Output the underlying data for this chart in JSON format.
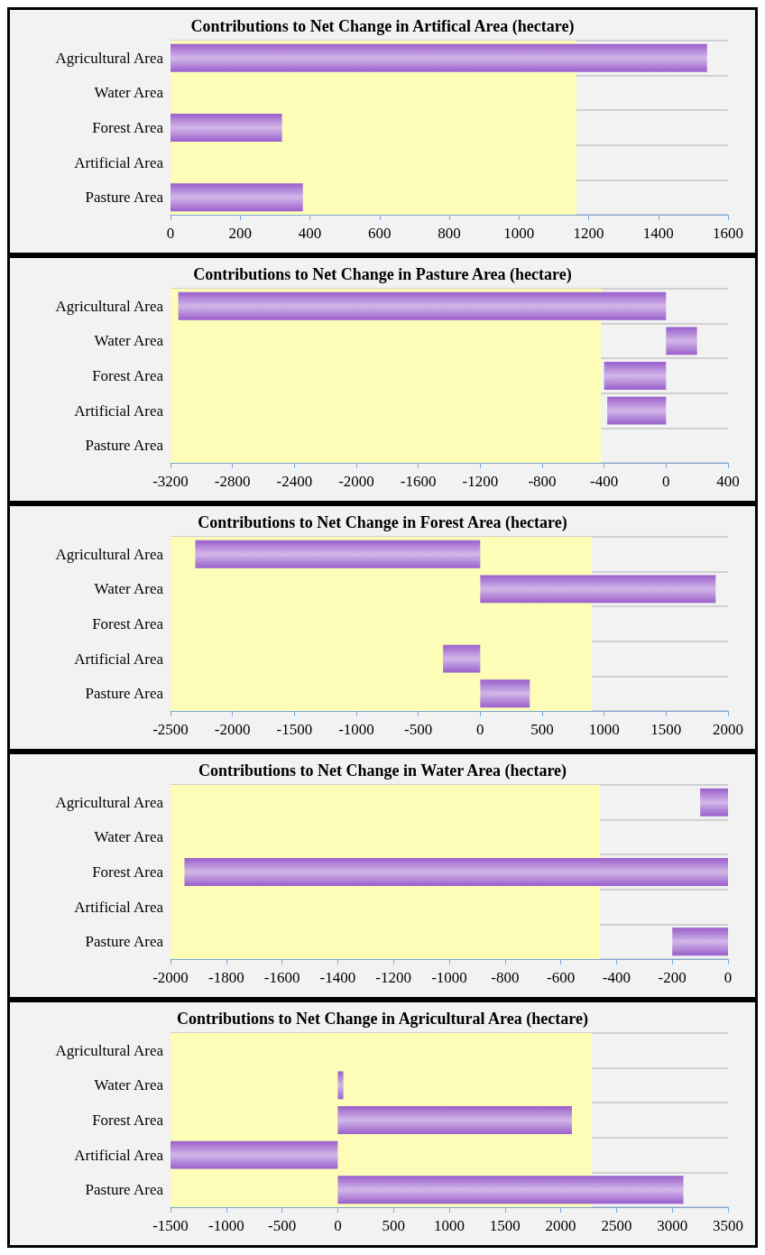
{
  "chart_data": [
    {
      "type": "bar",
      "orientation": "horizontal",
      "title": "Contributions to Net Change in Artifical Area (hectare)",
      "categories": [
        "Agricultural Area",
        "Water Area",
        "Forest Area",
        "Artificial Area",
        "Pasture Area"
      ],
      "values": [
        1540,
        0,
        320,
        0,
        380
      ],
      "color": "#9a5fcc",
      "xlim": [
        0,
        1600
      ],
      "xticks": [
        0,
        200,
        400,
        600,
        800,
        1000,
        1200,
        1400,
        1600
      ],
      "grid": "y",
      "bands": [
        {
          "axis": "x",
          "from": 0,
          "to": 1165,
          "color": "#fdfdb8"
        }
      ]
    },
    {
      "type": "bar",
      "orientation": "horizontal",
      "title": "Contributions to Net Change in Pasture Area (hectare)",
      "categories": [
        "Agricultural Area",
        "Water Area",
        "Forest Area",
        "Artificial Area",
        "Pasture Area"
      ],
      "values": [
        -3150,
        200,
        -400,
        -380,
        0
      ],
      "color": "#9a5fcc",
      "xlim": [
        -3200,
        400
      ],
      "xticks": [
        -3200,
        -2800,
        -2400,
        -2000,
        -1600,
        -1200,
        -800,
        -400,
        0,
        400
      ],
      "grid": "y",
      "bands": [
        {
          "axis": "x",
          "from": -3200,
          "to": -420,
          "color": "#fdfdb8"
        }
      ]
    },
    {
      "type": "bar",
      "orientation": "horizontal",
      "title": "Contributions to Net Change in Forest Area (hectare)",
      "categories": [
        "Agricultural Area",
        "Water Area",
        "Forest Area",
        "Artificial Area",
        "Pasture Area"
      ],
      "values": [
        -2300,
        1900,
        0,
        -300,
        400
      ],
      "color": "#9a5fcc",
      "xlim": [
        -2500,
        2000
      ],
      "xticks": [
        -2500,
        -2000,
        -1500,
        -1000,
        -500,
        0,
        500,
        1000,
        1500,
        2000
      ],
      "grid": "y",
      "bands": [
        {
          "axis": "x",
          "from": -2500,
          "to": 900,
          "color": "#fdfdb8"
        }
      ]
    },
    {
      "type": "bar",
      "orientation": "horizontal",
      "title": "Contributions to Net Change in Water Area (hectare)",
      "categories": [
        "Agricultural Area",
        "Water Area",
        "Forest Area",
        "Artificial Area",
        "Pasture Area"
      ],
      "values": [
        -100,
        0,
        -1950,
        0,
        -200
      ],
      "color": "#9a5fcc",
      "xlim": [
        -2000,
        0
      ],
      "xticks": [
        -2000,
        -1800,
        -1600,
        -1400,
        -1200,
        -1000,
        -800,
        -600,
        -400,
        -200,
        0
      ],
      "grid": "y",
      "bands": [
        {
          "axis": "x",
          "from": -2000,
          "to": -460,
          "color": "#fdfdb8"
        }
      ]
    },
    {
      "type": "bar",
      "orientation": "horizontal",
      "title": "Contributions to Net Change in Agricultural Area (hectare)",
      "categories": [
        "Agricultural Area",
        "Water Area",
        "Forest Area",
        "Artificial Area",
        "Pasture Area"
      ],
      "values": [
        0,
        50,
        2100,
        -1500,
        3100
      ],
      "color": "#9a5fcc",
      "xlim": [
        -1500,
        3500
      ],
      "xticks": [
        -1500,
        -1000,
        -500,
        0,
        500,
        1000,
        1500,
        2000,
        2500,
        3000,
        3500
      ],
      "grid": "y",
      "bands": [
        {
          "axis": "x",
          "from": -1500,
          "to": 2280,
          "color": "#fdfdb8"
        }
      ]
    }
  ]
}
